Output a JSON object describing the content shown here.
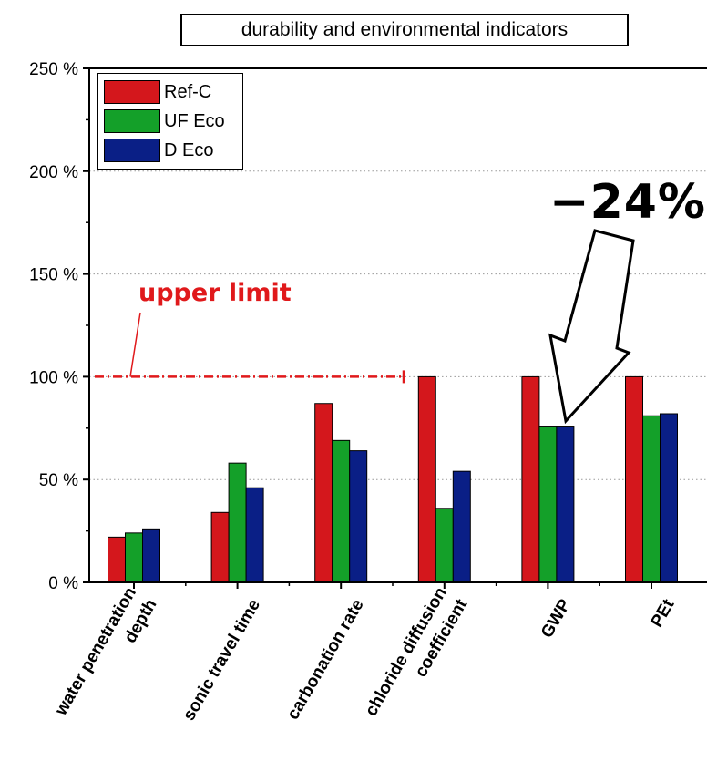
{
  "chart_data": {
    "type": "bar",
    "title": "durability and environmental indicators",
    "categories": [
      "water penetration depth",
      "sonic travel time",
      "carbonation rate",
      "chloride diffusion coefficient",
      "GWP",
      "PEt"
    ],
    "category_lines": [
      [
        "water penetration",
        "depth"
      ],
      [
        "sonic travel time"
      ],
      [
        "carbonation rate"
      ],
      [
        "chloride diffusion",
        "coefficient"
      ],
      [
        "GWP"
      ],
      [
        "PEt"
      ]
    ],
    "series": [
      {
        "name": "Ref-C",
        "color": "#d4171c",
        "values": [
          22,
          34,
          87,
          100,
          100,
          100
        ]
      },
      {
        "name": "UF Eco",
        "color": "#14a029",
        "values": [
          24,
          58,
          69,
          36,
          76,
          81
        ]
      },
      {
        "name": "D Eco",
        "color": "#0a1f86",
        "values": [
          26,
          46,
          64,
          54,
          76,
          82
        ]
      }
    ],
    "ylim": [
      0,
      250
    ],
    "yticks": [
      0,
      50,
      100,
      150,
      200,
      250
    ],
    "ytick_labels": [
      "0 %",
      "50 %",
      "100 %",
      "150 %",
      "200 %",
      "250 %"
    ],
    "grid": "horizontal dotted",
    "legend_position": "top-left",
    "annotations": {
      "upper_limit_label": "upper limit",
      "upper_limit_value": 100,
      "reduction_label": "−24%"
    }
  }
}
